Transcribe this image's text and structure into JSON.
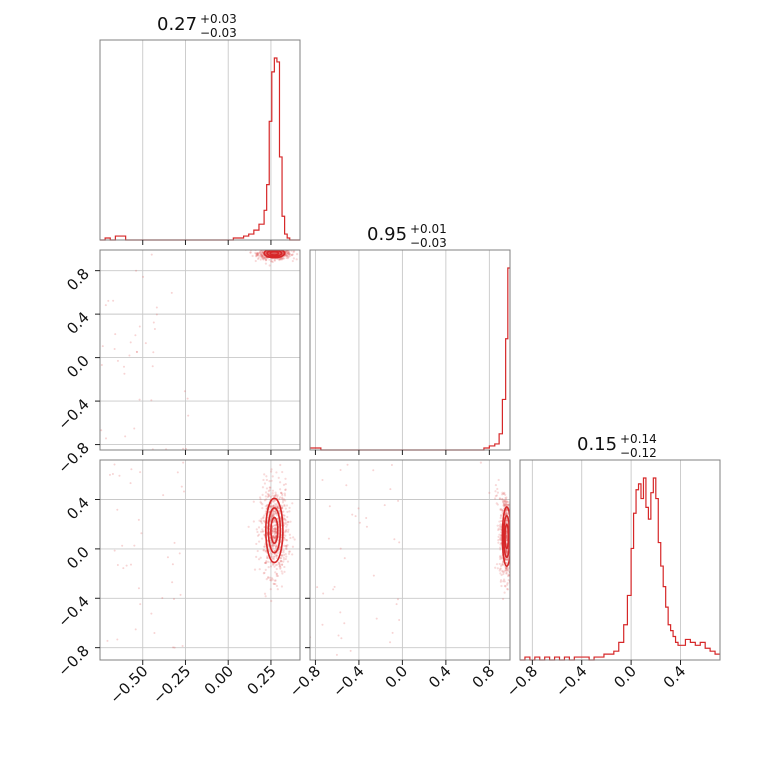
{
  "chart_data": {
    "type": "corner",
    "color": "#d62728",
    "parameters": [
      {
        "title": {
          "value": "0.27",
          "plus": "+0.03",
          "minus": "−0.03"
        },
        "range": [
          -0.75,
          0.42
        ],
        "ticks": [
          -0.5,
          -0.25,
          0.0,
          0.25
        ],
        "tick_labels": [
          "−0.50",
          "−0.25",
          "0.00",
          "0.25"
        ],
        "hist": {
          "bins": [
            -0.75,
            -0.72,
            -0.69,
            -0.66,
            -0.63,
            -0.6,
            -0.57,
            -0.54,
            -0.51,
            -0.48,
            -0.45,
            -0.42,
            -0.39,
            -0.36,
            -0.33,
            -0.3,
            -0.27,
            -0.24,
            -0.21,
            -0.18,
            -0.15,
            -0.12,
            -0.09,
            -0.06,
            -0.03,
            0.0,
            0.03,
            0.06,
            0.09,
            0.12,
            0.15,
            0.18,
            0.21,
            0.225,
            0.24,
            0.255,
            0.27,
            0.285,
            0.3,
            0.315,
            0.33,
            0.345,
            0.36,
            0.375,
            0.39,
            0.405,
            0.42
          ],
          "counts": [
            0,
            1,
            0,
            2,
            2,
            0,
            0,
            0,
            0,
            0,
            0,
            0,
            0,
            0,
            0,
            0,
            0,
            0,
            0,
            0,
            0,
            0,
            0,
            0,
            0,
            0,
            1,
            1,
            2,
            3,
            5,
            8,
            15,
            28,
            60,
            85,
            92,
            90,
            42,
            12,
            3,
            1,
            0,
            0,
            0,
            0
          ]
        }
      },
      {
        "title": {
          "value": "0.95",
          "plus": "+0.01",
          "minus": "−0.03"
        },
        "range": [
          -0.85,
          0.99
        ],
        "ticks": [
          -0.8,
          -0.4,
          0.0,
          0.4,
          0.8
        ],
        "tick_labels": [
          "−0.8",
          "−0.4",
          "0.0",
          "0.4",
          "0.8"
        ],
        "hist": {
          "bins": [
            -0.85,
            -0.8,
            -0.75,
            -0.7,
            -0.65,
            -0.6,
            -0.55,
            -0.5,
            -0.45,
            -0.4,
            -0.35,
            -0.3,
            -0.25,
            -0.2,
            -0.15,
            -0.1,
            -0.05,
            0.0,
            0.05,
            0.1,
            0.15,
            0.2,
            0.25,
            0.3,
            0.35,
            0.4,
            0.45,
            0.5,
            0.55,
            0.6,
            0.65,
            0.7,
            0.75,
            0.8,
            0.85,
            0.89,
            0.92,
            0.95,
            0.97,
            0.99
          ],
          "counts": [
            1,
            1,
            0,
            0,
            0,
            0,
            0,
            0,
            0,
            0,
            0,
            0,
            0,
            0,
            0,
            0,
            0,
            0,
            0,
            0,
            0,
            0,
            0,
            0,
            0,
            0,
            0,
            0,
            0,
            0,
            0,
            0,
            1,
            2,
            3,
            8,
            25,
            55,
            90
          ]
        }
      },
      {
        "title": {
          "value": "0.15",
          "plus": "+0.14",
          "minus": "−0.12"
        },
        "range": [
          -0.9,
          0.72
        ],
        "ticks": [
          -0.8,
          -0.4,
          0.0,
          0.4
        ],
        "tick_labels": [
          "−0.8",
          "−0.4",
          "0.0",
          "0.4"
        ],
        "hist": {
          "bins": [
            -0.9,
            -0.86,
            -0.82,
            -0.78,
            -0.74,
            -0.7,
            -0.66,
            -0.62,
            -0.58,
            -0.54,
            -0.5,
            -0.46,
            -0.42,
            -0.38,
            -0.34,
            -0.3,
            -0.26,
            -0.22,
            -0.18,
            -0.14,
            -0.1,
            -0.06,
            -0.03,
            0.0,
            0.02,
            0.04,
            0.06,
            0.08,
            0.1,
            0.12,
            0.14,
            0.16,
            0.18,
            0.2,
            0.22,
            0.24,
            0.26,
            0.28,
            0.3,
            0.32,
            0.34,
            0.36,
            0.38,
            0.4,
            0.44,
            0.48,
            0.52,
            0.56,
            0.6,
            0.64,
            0.68,
            0.72
          ],
          "counts": [
            0,
            1,
            0,
            1,
            0,
            1,
            0,
            1,
            0,
            1,
            0,
            1,
            1,
            1,
            0,
            1,
            1,
            2,
            2,
            3,
            6,
            12,
            22,
            38,
            50,
            58,
            60,
            55,
            62,
            52,
            48,
            57,
            62,
            55,
            40,
            32,
            25,
            18,
            12,
            10,
            8,
            6,
            5,
            5,
            7,
            6,
            5,
            6,
            4,
            3,
            2
          ]
        }
      }
    ],
    "pairs": [
      {
        "x_param": 0,
        "y_param": 1,
        "density_center": [
          0.27,
          0.96
        ],
        "spread": [
          0.03,
          0.02
        ]
      },
      {
        "x_param": 0,
        "y_param": 2,
        "density_center": [
          0.27,
          0.15
        ],
        "spread": [
          0.025,
          0.13
        ]
      },
      {
        "x_param": 1,
        "y_param": 2,
        "density_center": [
          0.96,
          0.1
        ],
        "spread": [
          0.02,
          0.12
        ]
      }
    ],
    "grid": true,
    "legend": "none"
  }
}
